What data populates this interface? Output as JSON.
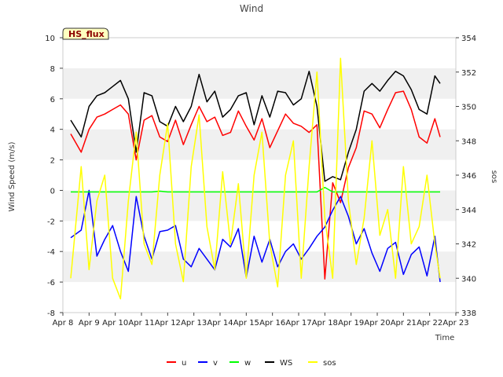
{
  "chart_data": {
    "type": "line",
    "title": "Wind",
    "xlabel": "Time",
    "ylabel": "Wind Speed (m/s)",
    "y2label": "sos",
    "annotation": "HS_flux",
    "ylim": [
      -8,
      10
    ],
    "y2lim": [
      338,
      354
    ],
    "xlim": [
      0,
      15
    ],
    "yticks": [
      -8,
      -6,
      -4,
      -2,
      0,
      2,
      4,
      6,
      8,
      10
    ],
    "y2ticks": [
      338,
      340,
      342,
      344,
      346,
      348,
      350,
      352,
      354
    ],
    "xticks": [
      {
        "x": 0,
        "label": "Apr 8"
      },
      {
        "x": 1,
        "label": "Apr 9"
      },
      {
        "x": 2,
        "label": "Apr 10"
      },
      {
        "x": 3,
        "label": "Apr 11"
      },
      {
        "x": 4,
        "label": "Apr 12"
      },
      {
        "x": 5,
        "label": "Apr 13"
      },
      {
        "x": 6,
        "label": "Apr 14"
      },
      {
        "x": 7,
        "label": "Apr 15"
      },
      {
        "x": 8,
        "label": "Apr 16"
      },
      {
        "x": 9,
        "label": "Apr 17"
      },
      {
        "x": 10,
        "label": "Apr 18"
      },
      {
        "x": 11,
        "label": "Apr 19"
      },
      {
        "x": 12,
        "label": "Apr 20"
      },
      {
        "x": 13,
        "label": "Apr 21"
      },
      {
        "x": 14,
        "label": "Apr 22"
      },
      {
        "x": 15,
        "label": "Apr 23"
      }
    ],
    "x": [
      0.3,
      0.7,
      1.0,
      1.3,
      1.6,
      1.9,
      2.2,
      2.5,
      2.8,
      3.1,
      3.4,
      3.7,
      4.0,
      4.3,
      4.6,
      4.9,
      5.2,
      5.5,
      5.8,
      6.1,
      6.4,
      6.7,
      7.0,
      7.3,
      7.6,
      7.9,
      8.2,
      8.5,
      8.8,
      9.1,
      9.4,
      9.7,
      10.0,
      10.3,
      10.6,
      10.9,
      11.2,
      11.5,
      11.8,
      12.1,
      12.4,
      12.7,
      13.0,
      13.3,
      13.6,
      13.9,
      14.2,
      14.4
    ],
    "series": [
      {
        "name": "u",
        "color": "#ff0000",
        "axis": "left",
        "values": [
          3.7,
          2.5,
          4.0,
          4.8,
          5.0,
          5.3,
          5.6,
          5.0,
          2.0,
          4.6,
          4.9,
          3.5,
          3.2,
          4.6,
          3.0,
          4.3,
          5.5,
          4.5,
          4.8,
          3.6,
          3.8,
          5.2,
          4.2,
          3.3,
          4.7,
          2.8,
          3.9,
          5.0,
          4.4,
          4.2,
          3.8,
          4.3,
          -5.8,
          0.5,
          -0.8,
          1.5,
          2.8,
          5.2,
          5.0,
          4.1,
          5.3,
          6.4,
          6.5,
          5.3,
          3.5,
          3.1,
          4.7,
          3.5
        ]
      },
      {
        "name": "v",
        "color": "#0000ff",
        "axis": "left",
        "values": [
          -3.1,
          -2.6,
          0.0,
          -4.3,
          -3.2,
          -2.3,
          -4.0,
          -5.3,
          -0.4,
          -3.0,
          -4.5,
          -2.7,
          -2.6,
          -2.3,
          -4.5,
          -5.0,
          -3.8,
          -4.5,
          -5.2,
          -3.2,
          -3.7,
          -2.5,
          -5.7,
          -3.0,
          -4.7,
          -3.2,
          -5.0,
          -4.0,
          -3.5,
          -4.5,
          -3.8,
          -3.0,
          -2.4,
          -1.3,
          -0.4,
          -1.7,
          -3.5,
          -2.5,
          -4.1,
          -5.3,
          -3.8,
          -3.4,
          -5.5,
          -4.2,
          -3.7,
          -5.6,
          -3.0,
          -6.0
        ]
      },
      {
        "name": "w",
        "color": "#00ff00",
        "axis": "left",
        "values": [
          -0.1,
          -0.1,
          -0.1,
          -0.1,
          -0.1,
          -0.1,
          -0.1,
          -0.1,
          -0.1,
          -0.1,
          -0.1,
          -0.05,
          -0.1,
          -0.1,
          -0.1,
          -0.1,
          -0.1,
          -0.1,
          -0.1,
          -0.1,
          -0.1,
          -0.1,
          -0.1,
          -0.1,
          -0.1,
          -0.1,
          -0.1,
          -0.1,
          -0.1,
          -0.1,
          -0.1,
          -0.1,
          0.2,
          -0.1,
          -0.1,
          -0.1,
          -0.1,
          -0.1,
          -0.1,
          -0.1,
          -0.1,
          -0.1,
          -0.1,
          -0.1,
          -0.1,
          -0.1,
          -0.1,
          -0.1
        ]
      },
      {
        "name": "WS",
        "color": "#000000",
        "axis": "left",
        "values": [
          4.6,
          3.5,
          5.5,
          6.2,
          6.4,
          6.8,
          7.2,
          6.0,
          2.5,
          6.4,
          6.2,
          4.5,
          4.2,
          5.5,
          4.5,
          5.5,
          7.6,
          5.8,
          6.5,
          4.8,
          5.3,
          6.2,
          6.4,
          4.3,
          6.2,
          4.8,
          6.5,
          6.4,
          5.6,
          6.0,
          7.8,
          5.5,
          0.6,
          0.9,
          0.7,
          2.5,
          4.0,
          6.5,
          7.0,
          6.5,
          7.2,
          7.8,
          7.5,
          6.6,
          5.3,
          5.0,
          7.5,
          7.0
        ]
      },
      {
        "name": "sos",
        "color": "#ffff00",
        "axis": "right",
        "values": [
          340.0,
          346.5,
          340.5,
          344.5,
          346.0,
          340.0,
          338.8,
          344.5,
          348.5,
          342.0,
          340.8,
          346.0,
          349.0,
          342.0,
          339.8,
          346.5,
          349.5,
          343.0,
          340.5,
          346.2,
          342.0,
          345.5,
          340.0,
          346.0,
          348.5,
          342.0,
          339.5,
          346.0,
          348.0,
          340.0,
          346.5,
          352.0,
          343.5,
          340.0,
          352.8,
          344.5,
          340.8,
          343.5,
          348.0,
          342.5,
          344.0,
          340.0,
          346.5,
          342.0,
          343.0,
          346.0,
          342.0,
          340.0
        ]
      }
    ],
    "legend": [
      "u",
      "v",
      "w",
      "WS",
      "sos"
    ],
    "legend_position": "bottom-center"
  }
}
